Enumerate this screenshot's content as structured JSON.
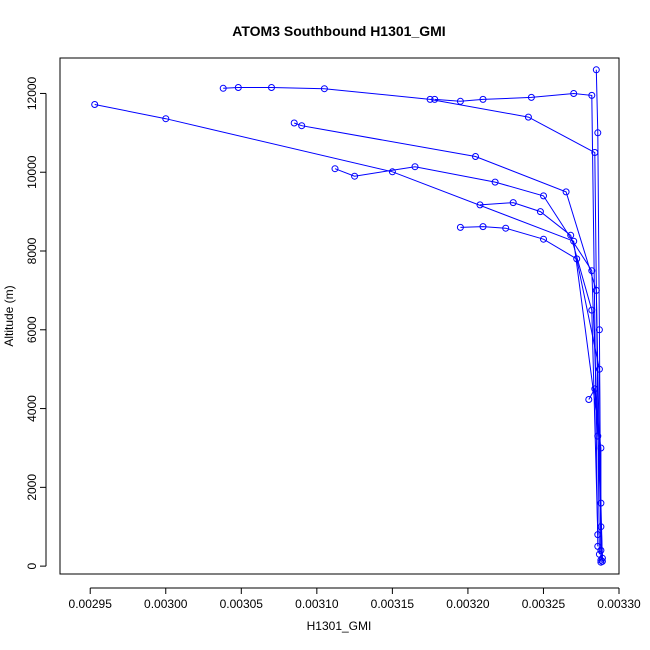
{
  "chart_data": {
    "type": "line",
    "title": "ATOM3 Southbound H1301_GMI",
    "xlabel": "H1301_GMI",
    "ylabel": "Altitude (m)",
    "xlim": [
      0.00293,
      0.0033
    ],
    "ylim": [
      -200,
      12900
    ],
    "xticks": [
      0.00295,
      0.003,
      0.00305,
      0.0031,
      0.00315,
      0.0032,
      0.00325,
      0.0033
    ],
    "xtick_labels": [
      "0.00295",
      "0.00300",
      "0.00305",
      "0.00310",
      "0.00315",
      "0.00320",
      "0.00325",
      "0.00330"
    ],
    "yticks": [
      0,
      2000,
      4000,
      6000,
      8000,
      10000,
      12000
    ],
    "ytick_labels": [
      "0",
      "2000",
      "4000",
      "6000",
      "8000",
      "10000",
      "12000"
    ],
    "marker": "open-circle",
    "color": "#0000ff",
    "grid": false,
    "legend": "none",
    "series": [
      {
        "x": [
          0.002953,
          0.003,
          0.00315,
          0.00327,
          0.003288,
          0.003288
        ],
        "y": [
          11720,
          11360,
          10010,
          8250,
          3000,
          100
        ]
      },
      {
        "x": [
          0.003038,
          0.003048,
          0.00307,
          0.003105,
          0.003175,
          0.00324,
          0.003284,
          0.003287
        ],
        "y": [
          12130,
          12150,
          12150,
          12120,
          11850,
          11400,
          10500,
          300
        ]
      },
      {
        "x": [
          0.003178,
          0.003195,
          0.00321,
          0.003242,
          0.00327,
          0.003282,
          0.003286
        ],
        "y": [
          11850,
          11800,
          11850,
          11900,
          12000,
          11950,
          500
        ]
      },
      {
        "x": [
          0.003085,
          0.00309,
          0.003205,
          0.003265,
          0.003285,
          0.003288
        ],
        "y": [
          11250,
          11180,
          10400,
          9500,
          7000,
          1000
        ]
      },
      {
        "x": [
          0.003112,
          0.003125,
          0.003165,
          0.003218,
          0.00325,
          0.003282,
          0.003289
        ],
        "y": [
          10090,
          9900,
          10140,
          9750,
          9400,
          7500,
          200
        ]
      },
      {
        "x": [
          0.003195,
          0.00321,
          0.003225,
          0.00325,
          0.003272,
          0.003287,
          0.003288
        ],
        "y": [
          8600,
          8620,
          8580,
          8300,
          7800,
          5000,
          150
        ]
      },
      {
        "x": [
          0.003208,
          0.00323,
          0.003248,
          0.003268,
          0.003282,
          0.003286
        ],
        "y": [
          9170,
          9230,
          9000,
          8400,
          6500,
          800
        ]
      },
      {
        "x": [
          0.00328,
          0.003284,
          0.003286,
          0.003288,
          0.003289
        ],
        "y": [
          4230,
          4500,
          3300,
          1600,
          120
        ]
      },
      {
        "x": [
          0.003285,
          0.003286,
          0.003287,
          0.003288
        ],
        "y": [
          12600,
          11000,
          6000,
          400
        ]
      }
    ]
  }
}
